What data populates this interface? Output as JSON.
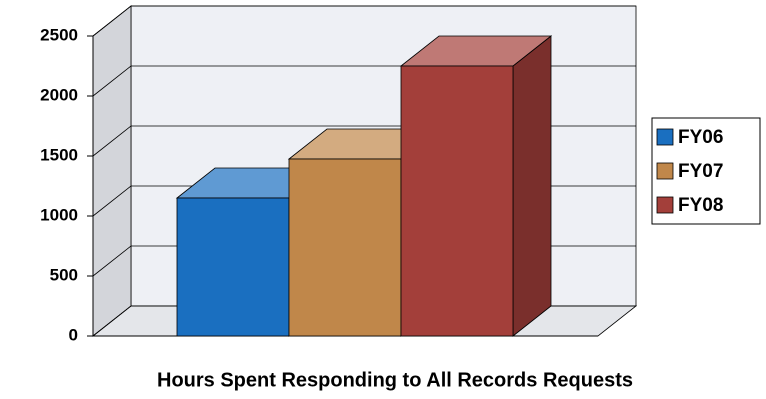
{
  "chart_data": {
    "type": "bar3d",
    "title": "Hours Spent Responding to All Records Requests",
    "categories": [
      null
    ],
    "series": [
      {
        "name": "FY06",
        "color": "#1a6fc0",
        "values": [
          1150
        ]
      },
      {
        "name": "FY07",
        "color": "#c0874a",
        "values": [
          1475
        ]
      },
      {
        "name": "FY08",
        "color": "#a33f3a",
        "values": [
          2250
        ]
      }
    ],
    "ylim": [
      0,
      2500
    ],
    "yticks": [
      0,
      500,
      1000,
      1500,
      2000,
      2500
    ],
    "grid": true,
    "legend": "right"
  }
}
